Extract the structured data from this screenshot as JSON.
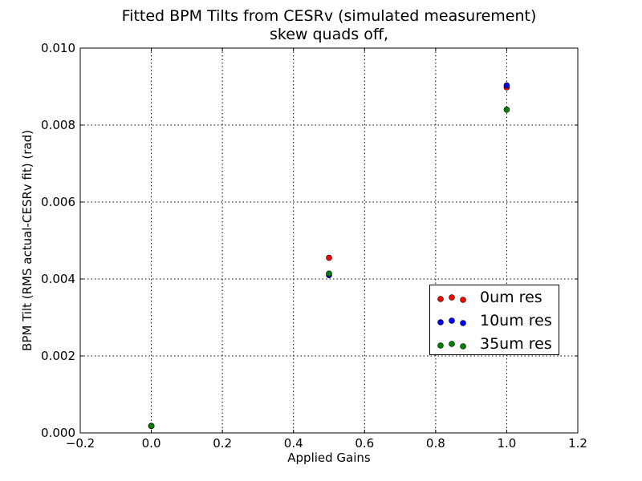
{
  "title": {
    "line1": "Fitted BPM Tilts from CESRv (simulated measurement)",
    "line2": "skew quads off,"
  },
  "chart_data": {
    "type": "scatter",
    "title": "Fitted BPM Tilts from CESRv (simulated measurement)",
    "subtitle": "skew quads off,",
    "xlabel": "Applied Gains",
    "ylabel": "BPM Tilt (RMS actual-CESRv fit) (rad)",
    "xlim": [
      -0.2,
      1.2
    ],
    "ylim": [
      0.0,
      0.01
    ],
    "xticks": [
      "−0.2",
      "0.0",
      "0.2",
      "0.4",
      "0.6",
      "0.8",
      "1.0",
      "1.2"
    ],
    "xtick_values": [
      -0.2,
      0.0,
      0.2,
      0.4,
      0.6,
      0.8,
      1.0,
      1.2
    ],
    "yticks": [
      "0.000",
      "0.002",
      "0.004",
      "0.006",
      "0.008",
      "0.010"
    ],
    "ytick_values": [
      0.0,
      0.002,
      0.004,
      0.006,
      0.008,
      0.01
    ],
    "grid": true,
    "legend_position": "lower-right",
    "series": [
      {
        "name": "0um res",
        "color": "#ff0000",
        "x": [
          0.0,
          0.5,
          1.0
        ],
        "y": [
          0.00018,
          0.00455,
          0.00898
        ]
      },
      {
        "name": "10um res",
        "color": "#0000ff",
        "x": [
          0.0,
          0.5,
          1.0
        ],
        "y": [
          0.00018,
          0.0041,
          0.00903
        ]
      },
      {
        "name": "35um res",
        "color": "#008000",
        "x": [
          0.0,
          0.5,
          1.0
        ],
        "y": [
          0.00018,
          0.00414,
          0.0084
        ]
      }
    ]
  }
}
